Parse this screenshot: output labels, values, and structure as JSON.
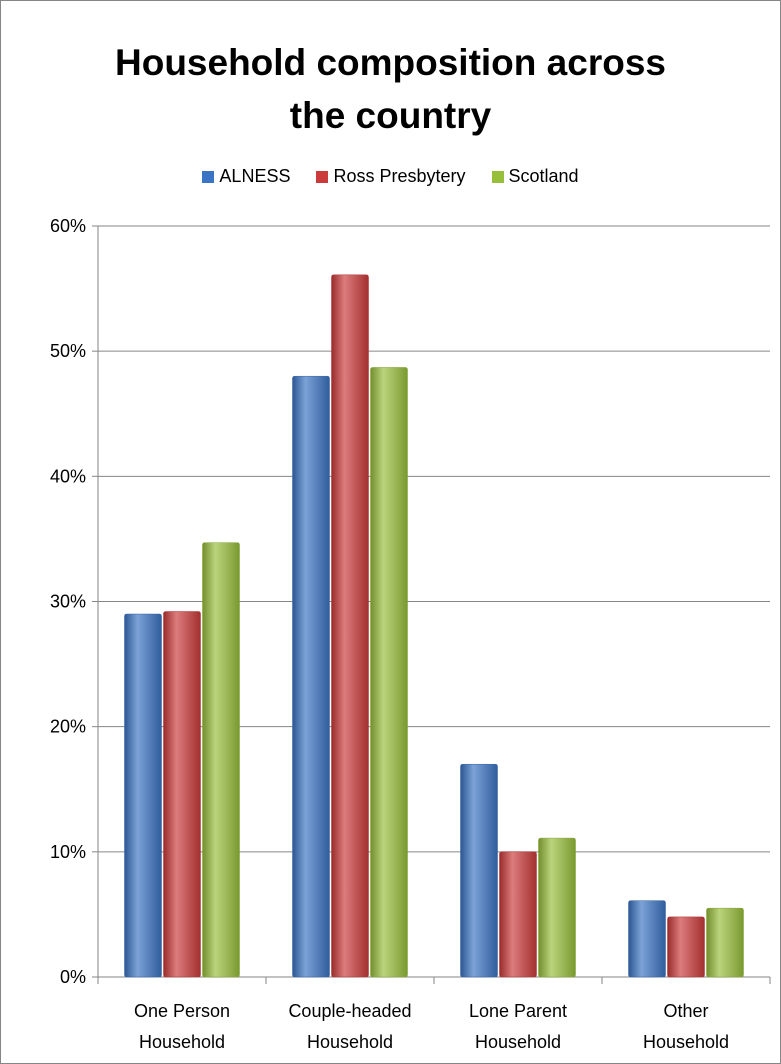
{
  "chart_data": {
    "type": "bar",
    "title_lines": [
      "Household composition across",
      "the country"
    ],
    "categories": [
      [
        "One Person",
        "Household"
      ],
      [
        "Couple-headed",
        "Household"
      ],
      [
        "Lone Parent",
        "Household"
      ],
      [
        "Other",
        "Household"
      ]
    ],
    "series": [
      {
        "name": "ALNESS",
        "color": "#3b74c4",
        "values": [
          0.29,
          0.48,
          0.17,
          0.061
        ]
      },
      {
        "name": "Ross Presbytery",
        "color": "#cc3b3b",
        "values": [
          0.292,
          0.561,
          0.1,
          0.048
        ]
      },
      {
        "name": "Scotland",
        "color": "#98bf3c",
        "values": [
          0.347,
          0.487,
          0.111,
          0.055
        ]
      }
    ],
    "yticks": [
      "0%",
      "10%",
      "20%",
      "30%",
      "40%",
      "50%",
      "60%"
    ],
    "ylim": [
      0,
      0.6
    ],
    "legend_position": "top",
    "grid": true
  }
}
